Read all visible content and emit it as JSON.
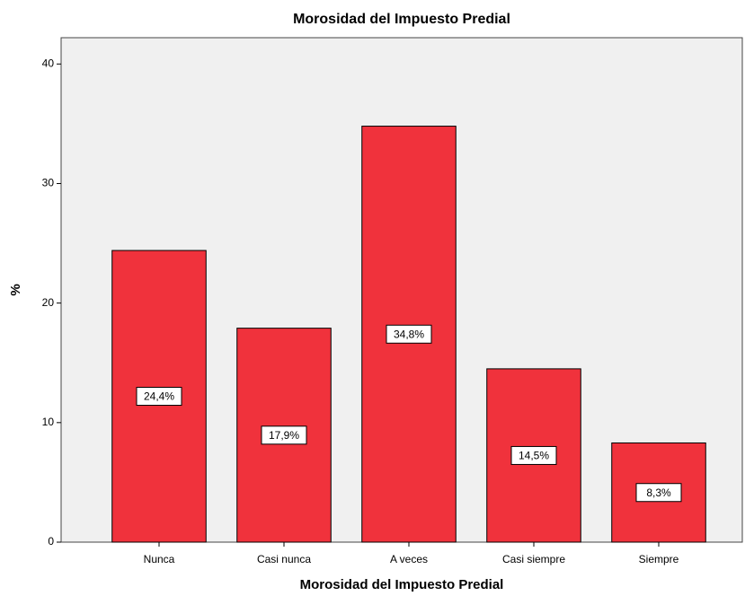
{
  "chart_data": {
    "type": "bar",
    "title": "Morosidad del Impuesto Predial",
    "x_label": "Morosidad del Impuesto Predial",
    "y_label": "%",
    "categories": [
      "Nunca",
      "Casi nunca",
      "A veces",
      "Casi siempre",
      "Siempre"
    ],
    "values": [
      24.4,
      17.9,
      34.8,
      14.5,
      8.3
    ],
    "value_labels": [
      "24,4%",
      "17,9%",
      "34,8%",
      "14,5%",
      "8,3%"
    ],
    "color": "#f0323c",
    "ylim": [
      0,
      42.2
    ],
    "yticks": [
      0,
      10,
      20,
      30,
      40
    ],
    "grid": false
  }
}
